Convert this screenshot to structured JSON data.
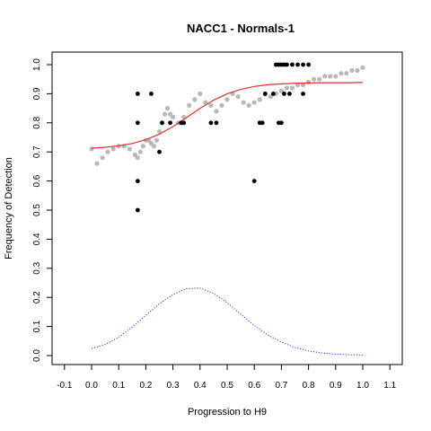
{
  "chart_data": {
    "type": "scatter",
    "title": "NACC1 - Normals-1",
    "xlabel": "Progression to H9",
    "ylabel": "Frequency of Detection",
    "xlim": [
      -0.1,
      1.1
    ],
    "ylim": [
      0.0,
      1.0
    ],
    "xticks": [
      "-0.1",
      "0.0",
      "0.1",
      "0.2",
      "0.3",
      "0.4",
      "0.5",
      "0.6",
      "0.7",
      "0.8",
      "0.9",
      "1.0",
      "1.1"
    ],
    "yticks": [
      "0.0",
      "0.1",
      "0.2",
      "0.3",
      "0.4",
      "0.5",
      "0.6",
      "0.7",
      "0.8",
      "0.9",
      "1.0"
    ],
    "grid": false,
    "legend": "none",
    "colors": {
      "observed": "#000000",
      "smoothed": "#b8b8b8",
      "fit": "#e03030",
      "density": "#3030ff"
    },
    "series": [
      {
        "style": "black points",
        "x": [
          0.17,
          0.17,
          0.17,
          0.17,
          0.22,
          0.25,
          0.26,
          0.29,
          0.33,
          0.34,
          0.44,
          0.46,
          0.6,
          0.62,
          0.63,
          0.64,
          0.67,
          0.68,
          0.69,
          0.69,
          0.7,
          0.7,
          0.71,
          0.71,
          0.72,
          0.73,
          0.74,
          0.76,
          0.78,
          0.78,
          0.8
        ],
        "y": [
          0.5,
          0.6,
          0.8,
          0.9,
          0.9,
          0.7,
          0.8,
          0.8,
          0.8,
          0.8,
          0.8,
          0.8,
          0.6,
          0.8,
          0.8,
          0.9,
          0.9,
          1.0,
          0.8,
          1.0,
          0.8,
          1.0,
          0.9,
          1.0,
          1.0,
          0.9,
          1.0,
          1.0,
          0.9,
          1.0,
          1.0
        ]
      },
      {
        "style": "grey running mean",
        "x": [
          0.0,
          0.02,
          0.04,
          0.06,
          0.08,
          0.1,
          0.12,
          0.14,
          0.16,
          0.17,
          0.18,
          0.19,
          0.2,
          0.21,
          0.22,
          0.23,
          0.24,
          0.25,
          0.26,
          0.27,
          0.28,
          0.29,
          0.3,
          0.32,
          0.34,
          0.36,
          0.38,
          0.4,
          0.42,
          0.44,
          0.46,
          0.48,
          0.5,
          0.52,
          0.54,
          0.56,
          0.58,
          0.6,
          0.62,
          0.64,
          0.66,
          0.68,
          0.7,
          0.72,
          0.74,
          0.76,
          0.78,
          0.8,
          0.82,
          0.84,
          0.86,
          0.88,
          0.9,
          0.92,
          0.94,
          0.96,
          0.98,
          1.0
        ],
        "y": [
          0.71,
          0.66,
          0.68,
          0.7,
          0.71,
          0.72,
          0.72,
          0.71,
          0.69,
          0.68,
          0.7,
          0.72,
          0.74,
          0.74,
          0.73,
          0.72,
          0.74,
          0.77,
          0.8,
          0.83,
          0.85,
          0.83,
          0.82,
          0.8,
          0.82,
          0.86,
          0.88,
          0.9,
          0.87,
          0.86,
          0.84,
          0.86,
          0.88,
          0.9,
          0.89,
          0.87,
          0.86,
          0.87,
          0.88,
          0.9,
          0.89,
          0.9,
          0.91,
          0.92,
          0.92,
          0.93,
          0.93,
          0.94,
          0.95,
          0.95,
          0.96,
          0.96,
          0.96,
          0.97,
          0.97,
          0.98,
          0.98,
          0.99
        ]
      },
      {
        "style": "red logistic fit",
        "x": [
          0.0,
          0.05,
          0.1,
          0.15,
          0.2,
          0.25,
          0.3,
          0.35,
          0.4,
          0.45,
          0.5,
          0.55,
          0.6,
          0.65,
          0.7,
          0.75,
          0.8,
          0.85,
          0.9,
          0.95,
          1.0
        ],
        "y": [
          0.713,
          0.716,
          0.721,
          0.729,
          0.742,
          0.761,
          0.787,
          0.818,
          0.85,
          0.878,
          0.9,
          0.915,
          0.925,
          0.931,
          0.934,
          0.936,
          0.937,
          0.938,
          0.938,
          0.938,
          0.939
        ]
      },
      {
        "style": "blue dotted density",
        "x": [
          0.0,
          0.05,
          0.1,
          0.15,
          0.2,
          0.25,
          0.3,
          0.35,
          0.4,
          0.45,
          0.5,
          0.55,
          0.6,
          0.65,
          0.7,
          0.75,
          0.8,
          0.85,
          0.9,
          0.95,
          1.0
        ],
        "y": [
          0.024,
          0.038,
          0.063,
          0.098,
          0.138,
          0.178,
          0.21,
          0.23,
          0.232,
          0.214,
          0.182,
          0.142,
          0.104,
          0.071,
          0.046,
          0.028,
          0.016,
          0.009,
          0.005,
          0.003,
          0.002
        ]
      }
    ]
  }
}
